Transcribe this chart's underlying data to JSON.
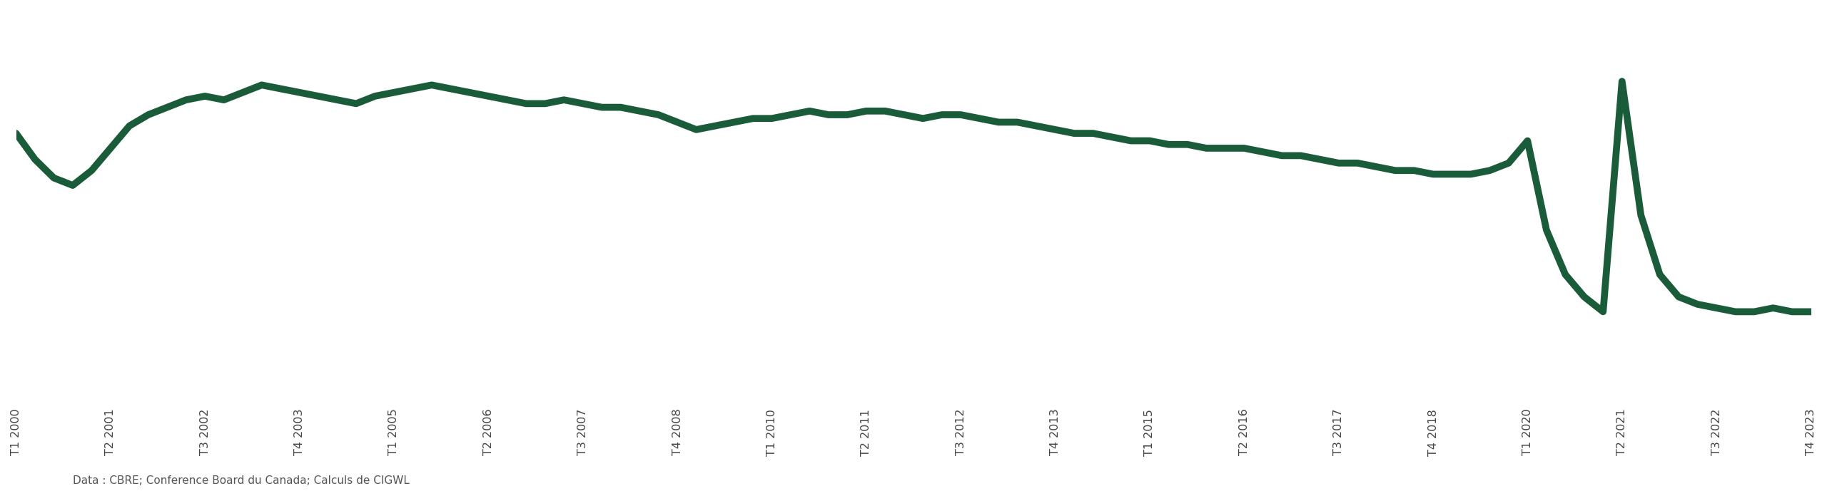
{
  "line_color": "#1a5c3a",
  "background_color": "#ffffff",
  "line_width": 7.0,
  "caption": "Data : CBRE; Conference Board du Canada; Calculs de CIGWL",
  "tick_labels_shown": [
    "T1 2000",
    "T2 2001",
    "T3 2002",
    "T4 2003",
    "T1 2005",
    "T2 2006",
    "T3 2007",
    "T4 2008",
    "T1 2010",
    "T2 2011",
    "T3 2012",
    "T4 2013",
    "T1 2015",
    "T2 2016",
    "T3 2017",
    "T4 2018",
    "T1 2020",
    "T2 2021",
    "T3 2022",
    "T4 2023"
  ],
  "values": [
    82,
    75,
    70,
    68,
    72,
    78,
    84,
    87,
    89,
    91,
    92,
    91,
    93,
    95,
    94,
    93,
    92,
    91,
    90,
    92,
    93,
    94,
    95,
    94,
    93,
    92,
    91,
    90,
    90,
    91,
    90,
    89,
    89,
    88,
    87,
    85,
    83,
    84,
    85,
    86,
    86,
    87,
    88,
    87,
    87,
    88,
    88,
    87,
    86,
    87,
    87,
    86,
    85,
    85,
    84,
    83,
    82,
    82,
    81,
    80,
    80,
    79,
    79,
    78,
    78,
    78,
    77,
    76,
    76,
    75,
    74,
    74,
    73,
    72,
    72,
    71,
    71,
    71,
    72,
    74,
    80,
    56,
    44,
    38,
    34,
    96,
    60,
    44,
    38,
    36,
    35,
    34,
    34,
    35,
    34,
    34
  ],
  "ylim": [
    10,
    115
  ],
  "figsize": [
    25.6,
    6.89
  ],
  "dpi": 100,
  "tick_fontsize": 11.5,
  "caption_fontsize": 11,
  "caption_color": "#555555"
}
